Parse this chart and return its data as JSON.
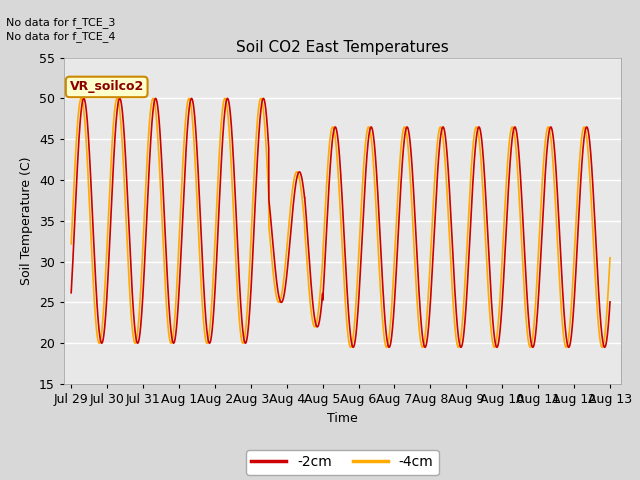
{
  "title": "Soil CO2 East Temperatures",
  "xlabel": "Time",
  "ylabel": "Soil Temperature (C)",
  "ylim": [
    15,
    55
  ],
  "background_color": "#d8d8d8",
  "plot_bg_color": "#e8e8e8",
  "grid_color": "#ffffff",
  "color_2cm": "#cc0000",
  "color_4cm": "#ffaa00",
  "legend_2cm": "-2cm",
  "legend_4cm": "-4cm",
  "no_data_text_1": "No data for f_TCE_3",
  "no_data_text_2": "No data for f_TCE_4",
  "box_label": "VR_soilco2",
  "xtick_labels": [
    "Jul 29",
    "Jul 30",
    "Jul 31",
    "Aug 1",
    "Aug 2",
    "Aug 3",
    "Aug 4",
    "Aug 5",
    "Aug 6",
    "Aug 7",
    "Aug 8",
    "Aug 9",
    "Aug 10",
    "Aug 11",
    "Aug 12",
    "Aug 13"
  ],
  "ytick_vals": [
    15,
    20,
    25,
    30,
    35,
    40,
    45,
    50,
    55
  ],
  "lw": 1.2
}
